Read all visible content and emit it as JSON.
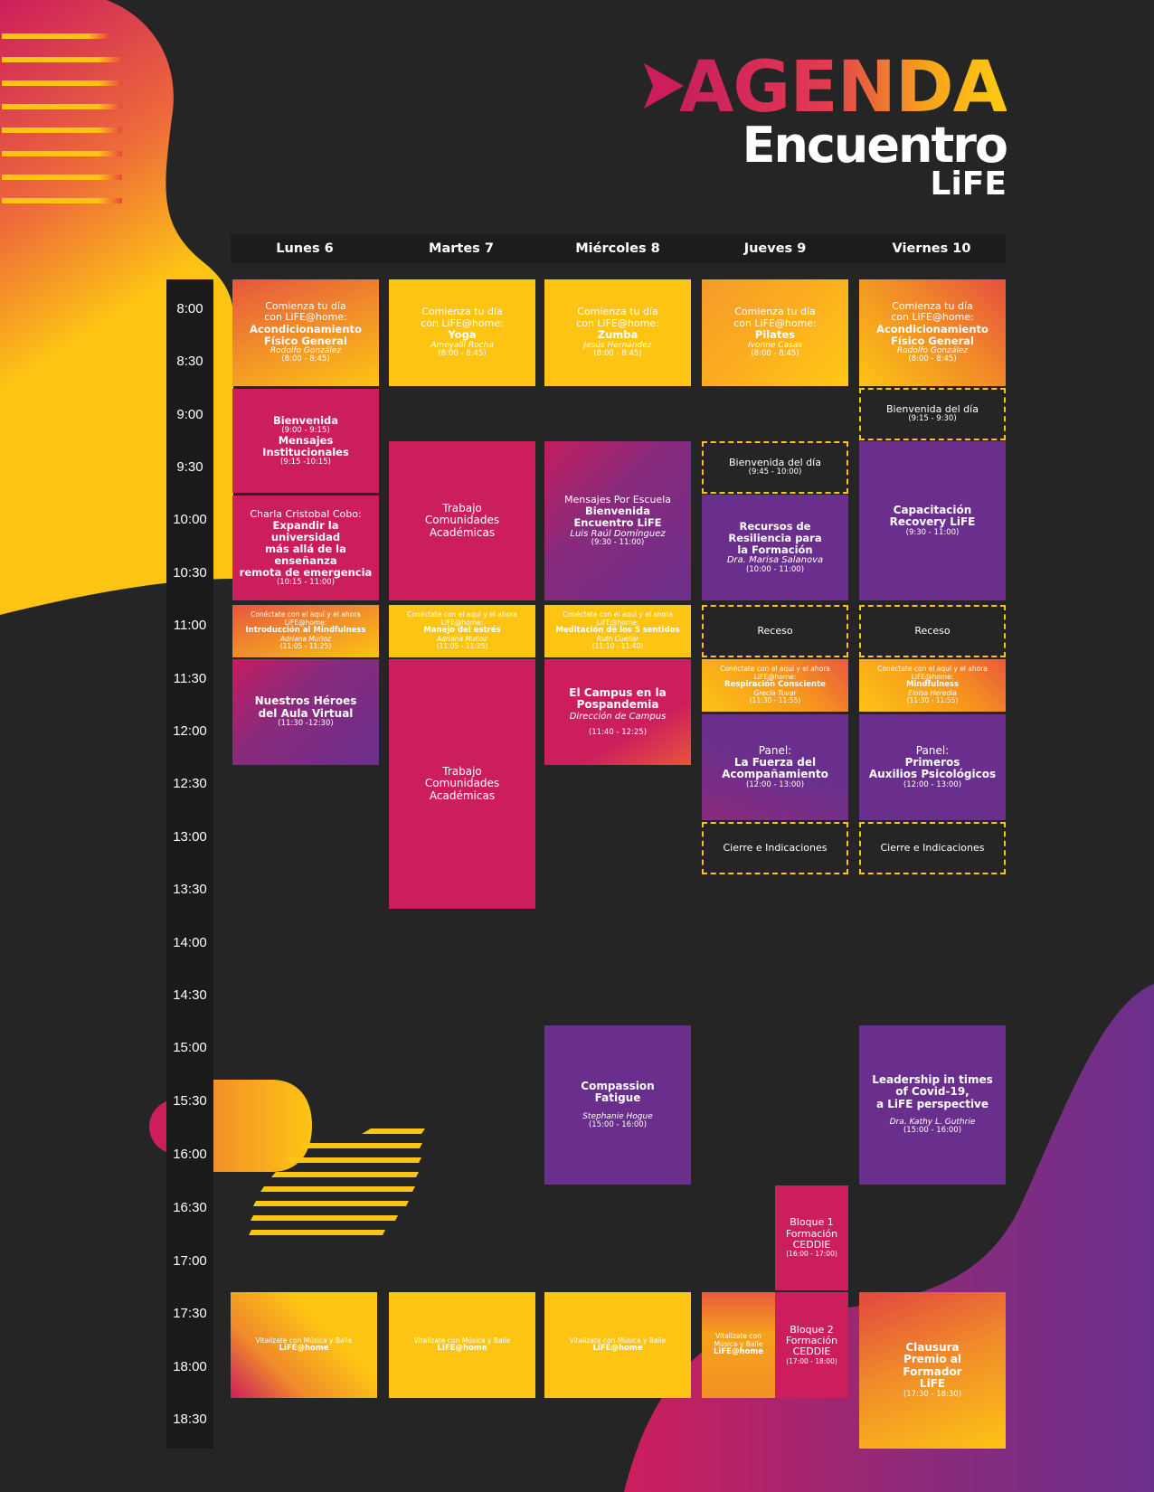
{
  "header": {
    "title": "AGENDA",
    "subtitle": "Encuentro",
    "brand": "LiFE"
  },
  "colors": {
    "background": "#252525",
    "yellow": "#fdc414",
    "magenta": "#cc1e5c",
    "purple": "#6a2f8c",
    "orange": "#f29125"
  },
  "days": [
    "Lunes 6",
    "Martes 7",
    "Miércoles 8",
    "Jueves 9",
    "Viernes 10"
  ],
  "times": [
    "8:00",
    "8:30",
    "9:00",
    "9:30",
    "10:00",
    "10:30",
    "11:00",
    "11:30",
    "12:00",
    "12:30",
    "13:00",
    "13:30",
    "14:00",
    "14:30",
    "15:00",
    "15:30",
    "16:00",
    "16:30",
    "17:00",
    "17:30",
    "18:00",
    "18:30"
  ],
  "events": {
    "mon_1": {
      "l1": "Comienza tu día",
      "l2": "con LiFE@home:",
      "title": "Acondicionamiento",
      "title2": "Físico General",
      "speaker": "Rodolfo González",
      "time": "(8:00 - 8:45)"
    },
    "tue_1": {
      "l1": "Comienza tu día",
      "l2": "con LiFE@home:",
      "title": "Yoga",
      "speaker": "Ameyalli Rocha",
      "time": "(8:00 - 8:45)"
    },
    "wed_1": {
      "l1": "Comienza tu día",
      "l2": "con LiFE@home:",
      "title": "Zumba",
      "speaker": "Jesús Hernández",
      "time": "(8:00 - 8:45)"
    },
    "thu_1": {
      "l1": "Comienza tu día",
      "l2": "con LiFE@home:",
      "title": "Pilates",
      "speaker": "Ivonne Casas",
      "time": "(8:00 - 8:45)"
    },
    "fri_1": {
      "l1": "Comienza tu día",
      "l2": "con LiFE@home:",
      "title": "Acondicionamiento",
      "title2": "Físico General",
      "speaker": "Rodolfo González",
      "time": "(8:00 - 8:45)"
    },
    "mon_2": {
      "title": "Bienvenida",
      "time": "(9:00 - 9:15)",
      "title2": "Mensajes Institucionales",
      "time2": "(9:15 -10:15)"
    },
    "fri_2": {
      "title": "Bienvenida del día",
      "time": "(9:15 - 9:30)"
    },
    "tue_2": {
      "l1": "Trabajo",
      "l2": "Comunidades",
      "l3": "Académicas"
    },
    "wed_2": {
      "l1": "Mensajes Por Escuela",
      "title": "Bienvenida",
      "title2": "Encuentro LiFE",
      "speaker": "Luis Raúl Domínguez",
      "time": "(9:30 - 11:00)"
    },
    "thu_2": {
      "title": "Bienvenida del día",
      "time": "(9:45 - 10:00)"
    },
    "fri_3": {
      "title": "Capacitación",
      "title2": "Recovery LiFE",
      "time": "(9:30 - 11:00)"
    },
    "mon_3": {
      "l1": "Charla Cristobal Cobo:",
      "title": "Expandir la universidad",
      "title2": "más allá de la enseñanza",
      "title3": "remota de emergencia",
      "time": "(10:15 - 11:00)"
    },
    "thu_3": {
      "title": "Recursos de",
      "title2": "Resiliencia para",
      "title3": "la Formación",
      "speaker": "Dra. Marisa Salanova",
      "time": "(10:00 - 11:00)"
    },
    "mon_4": {
      "l1": "Conéctate con el aquí y el ahora",
      "l2": "LiFE@home:",
      "title": "Introducción al Mindfulness",
      "speaker": "Adriana Muñoz",
      "time": "(11:05 - 11:25)"
    },
    "tue_4": {
      "l1": "Conéctate con el aquí y el ahora",
      "l2": "LiFE@home:",
      "title": "Manejo del estrés",
      "speaker": "Adriana Muñoz",
      "time": "(11:05 - 11:25)"
    },
    "wed_4": {
      "l1": "Conéctate con el aquí y el ahora",
      "l2": "LiFE@home:",
      "title": "Meditación de los 5 sentidos",
      "speaker": "Ruth Cuellar",
      "time": "(11:10 - 11:40)"
    },
    "thu_4": {
      "title": "Receso"
    },
    "fri_4": {
      "title": "Receso"
    },
    "thu_5": {
      "l1": "Conéctate con el aquí y el ahora",
      "l2": "LiFE@home:",
      "title": "Respiración Consciente",
      "speaker": "Grecia Tovar",
      "time": "(11:30 - 11:55)"
    },
    "fri_5": {
      "l1": "Conéctate con el aquí y el ahora",
      "l2": "LiFE@home:",
      "title": "Mindfulness",
      "speaker": "Eloisa Heredia",
      "time": "(11:30 - 11:55)"
    },
    "mon_5": {
      "title": "Nuestros Héroes",
      "title2": "del Aula Virtual",
      "time": "(11:30 -12:30)"
    },
    "tue_5": {
      "l1": "Trabajo",
      "l2": "Comunidades",
      "l3": "Académicas"
    },
    "wed_5": {
      "title": "El Campus en la",
      "title2": "Pospandemia",
      "speaker": "Dirección de Campus",
      "time": "(11:40 - 12:25)"
    },
    "thu_6": {
      "l1": "Panel:",
      "title": "La Fuerza del",
      "title2": "Acompañamiento",
      "time": "(12:00 - 13:00)"
    },
    "fri_6": {
      "l1": "Panel:",
      "title": "Primeros",
      "title2": "Auxilios Psicológicos",
      "time": "(12:00 - 13:00)"
    },
    "thu_7": {
      "title": "Cierre e Indicaciones"
    },
    "fri_7": {
      "title": "Cierre e Indicaciones"
    },
    "wed_6": {
      "title": "Compassion",
      "title2": "Fatigue",
      "speaker": "Stephanie Hogue",
      "time": "(15:00 - 16:00)"
    },
    "fri_8": {
      "title": "Leadership in times",
      "title2": "of Covid-19,",
      "title3": "a LiFE perspective",
      "speaker": "Dra. Kathy L. Guthrie",
      "time": "(15:00 - 16:00)"
    },
    "thu_8": {
      "l1": "Bloque 1",
      "l2": "Formación",
      "l3": "CEDDIE",
      "time": "(16:00 - 17:00)"
    },
    "thu_9": {
      "l1": "Bloque 2",
      "l2": "Formación",
      "l3": "CEDDIE",
      "time": "(17:00 - 18:00)"
    },
    "mon_6": {
      "l1": "Vitalízate con Música y Baile",
      "title": "LiFE@home"
    },
    "tue_6": {
      "l1": "Vitalízate con Música y Baile",
      "title": "LiFE@home"
    },
    "wed_7": {
      "l1": "Vitalízate con Música y Baile",
      "title": "LiFE@home"
    },
    "thu_10": {
      "l1": "Vitalízate con",
      "l2": "Música y Baile",
      "title": "LiFE@home"
    },
    "fri_9": {
      "title": "Clausura",
      "title2": "Premio al",
      "title3": "Formador",
      "title4": "LiFE",
      "time": "(17:30 - 18:30)"
    }
  }
}
